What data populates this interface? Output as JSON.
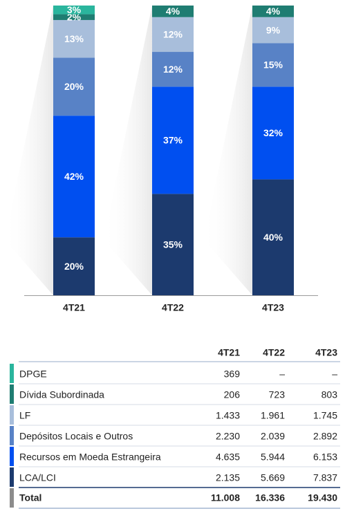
{
  "chart_data": {
    "type": "stacked_bar",
    "categories": [
      "4T21",
      "4T22",
      "4T23"
    ],
    "series": [
      {
        "name": "LCA/LCI",
        "color": "#1c3a6e",
        "values": [
          20,
          35,
          40
        ],
        "value_labels": [
          "20%",
          "35%",
          "40%"
        ]
      },
      {
        "name": "Recursos em Moeda Estrangeira",
        "color": "#004ff0",
        "values": [
          42,
          37,
          32
        ],
        "value_labels": [
          "42%",
          "37%",
          "32%"
        ]
      },
      {
        "name": "Depósitos Locais e Outros",
        "color": "#5882c6",
        "values": [
          20,
          12,
          15
        ],
        "value_labels": [
          "20%",
          "12%",
          "15%"
        ]
      },
      {
        "name": "LF",
        "color": "#a8bedb",
        "values": [
          13,
          12,
          9
        ],
        "value_labels": [
          "13%",
          "12%",
          "9%"
        ]
      },
      {
        "name": "Dívida Subordinada",
        "color": "#1f7d72",
        "values": [
          2,
          4,
          4
        ],
        "value_labels": [
          "2%",
          "4%",
          "4%"
        ]
      },
      {
        "name": "DPGE",
        "color": "#2ab59d",
        "values": [
          3,
          null,
          null
        ],
        "value_labels": [
          "3%",
          null,
          null
        ]
      }
    ]
  },
  "table": {
    "columns": [
      "4T21",
      "4T22",
      "4T23"
    ],
    "rows": [
      {
        "label": "DPGE",
        "values": [
          "369",
          "–",
          "–"
        ]
      },
      {
        "label": "Dívida Subordinada",
        "values": [
          "206",
          "723",
          "803"
        ]
      },
      {
        "label": "LF",
        "values": [
          "1.433",
          "1.961",
          "1.745"
        ]
      },
      {
        "label": "Depósitos Locais e Outros",
        "values": [
          "2.230",
          "2.039",
          "2.892"
        ]
      },
      {
        "label": "Recursos em Moeda Estrangeira",
        "values": [
          "4.635",
          "5.944",
          "6.153"
        ]
      },
      {
        "label": "LCA/LCI",
        "values": [
          "2.135",
          "5.669",
          "7.837"
        ]
      }
    ],
    "total": {
      "label": "Total",
      "color": "#8c8c8c",
      "values": [
        "11.008",
        "16.336",
        "19.430"
      ]
    }
  }
}
